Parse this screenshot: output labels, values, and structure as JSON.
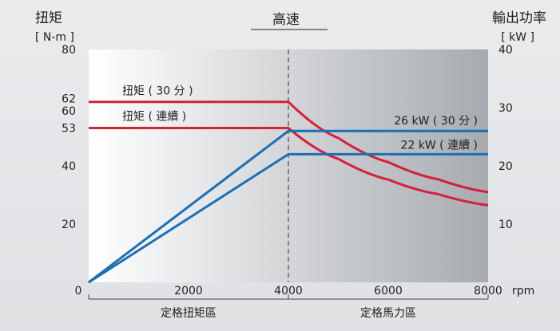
{
  "chart_data": {
    "type": "line",
    "title": "高速",
    "left_axis": {
      "title": "扭矩",
      "unit": "[ N-m ]",
      "ylim": [
        0,
        80
      ],
      "ticks": [
        0,
        20,
        40,
        53,
        60,
        62,
        80
      ]
    },
    "right_axis": {
      "title": "輸出功率",
      "unit": "[ kW ]",
      "ylim": [
        0,
        40
      ],
      "ticks": [
        10,
        20,
        30,
        40
      ]
    },
    "x_axis": {
      "xlim": [
        0,
        8000
      ],
      "ticks": [
        0,
        2000,
        4000,
        6000,
        8000
      ],
      "unit": "rpm"
    },
    "regions": [
      {
        "label": "定格扭矩區",
        "x": [
          0,
          4000
        ]
      },
      {
        "label": "定格馬力區",
        "x": [
          4000,
          8000
        ]
      }
    ],
    "series": [
      {
        "name": "扭矩 ( 30 分 )",
        "axis": "left",
        "color": "#d6203a",
        "points": [
          [
            0,
            62
          ],
          [
            4000,
            62
          ],
          [
            5000,
            49.6
          ],
          [
            6000,
            41.3
          ],
          [
            7000,
            35.4
          ],
          [
            8000,
            31
          ]
        ]
      },
      {
        "name": "扭矩 ( 連續 )",
        "axis": "left",
        "color": "#d6203a",
        "points": [
          [
            0,
            53
          ],
          [
            4000,
            53
          ],
          [
            5000,
            42.4
          ],
          [
            6000,
            35.3
          ],
          [
            7000,
            30.3
          ],
          [
            8000,
            26.5
          ]
        ]
      },
      {
        "name": "26 kW ( 30 分 )",
        "axis": "right",
        "color": "#1b6fb5",
        "points": [
          [
            0,
            0
          ],
          [
            4000,
            26
          ],
          [
            8000,
            26
          ]
        ]
      },
      {
        "name": "22 kW ( 連續 )",
        "axis": "right",
        "color": "#1b6fb5",
        "points": [
          [
            0,
            0
          ],
          [
            4000,
            22
          ],
          [
            8000,
            22
          ]
        ]
      }
    ],
    "annotations": [
      {
        "text": "扭矩 ( 30 分 )",
        "series": 0
      },
      {
        "text": "扭矩 ( 連續 )",
        "series": 1
      },
      {
        "text": "26 kW ( 30 分 )",
        "series": 2
      },
      {
        "text": "22 kW ( 連續 )",
        "series": 3
      }
    ]
  }
}
